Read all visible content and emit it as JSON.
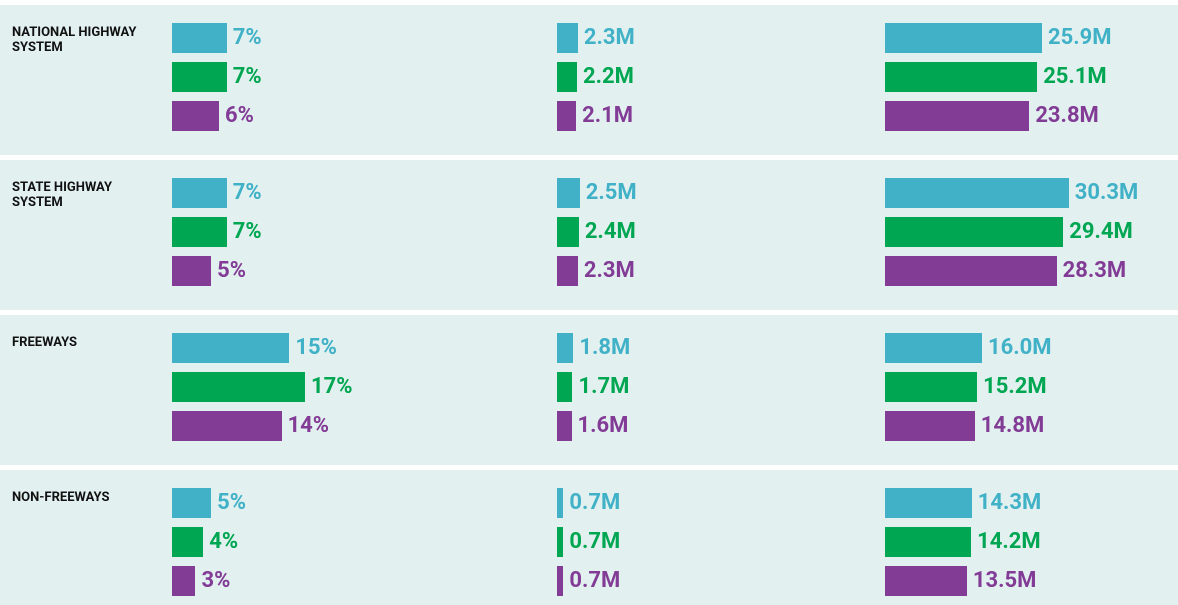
{
  "chart_data": {
    "type": "bar",
    "orientation": "horizontal",
    "categories": [
      "NATIONAL HIGHWAY SYSTEM",
      "STATE HIGHWAY SYSTEM",
      "FREEWAYS",
      "NON-FREEWAYS"
    ],
    "panels": [
      {
        "xlim": [
          0,
          46
        ],
        "series": [
          {
            "color": "#40b1c7",
            "values": [
              7,
              7,
              15,
              5
            ],
            "value_labels": [
              "7%",
              "7%",
              "15%",
              "5%"
            ]
          },
          {
            "color": "#00a651",
            "values": [
              7,
              7,
              17,
              4
            ],
            "value_labels": [
              "7%",
              "7%",
              "17%",
              "4%"
            ]
          },
          {
            "color": "#833c96",
            "values": [
              6,
              5,
              14,
              3
            ],
            "value_labels": [
              "6%",
              "5%",
              "14%",
              "3%"
            ]
          }
        ]
      },
      {
        "xlim": [
          0,
          33
        ],
        "series": [
          {
            "color": "#40b1c7",
            "values": [
              2.3,
              2.5,
              1.8,
              0.7
            ],
            "value_labels": [
              "2.3M",
              "2.5M",
              "1.8M",
              "0.7M"
            ]
          },
          {
            "color": "#00a651",
            "values": [
              2.2,
              2.4,
              1.7,
              0.7
            ],
            "value_labels": [
              "2.2M",
              "2.4M",
              "1.7M",
              "0.7M"
            ]
          },
          {
            "color": "#833c96",
            "values": [
              2.1,
              2.3,
              1.6,
              0.7
            ],
            "value_labels": [
              "2.1M",
              "2.3M",
              "1.6M",
              "0.7M"
            ]
          }
        ]
      },
      {
        "xlim": [
          0,
          47
        ],
        "series": [
          {
            "color": "#40b1c7",
            "values": [
              25.9,
              30.3,
              16.0,
              14.3
            ],
            "value_labels": [
              "25.9M",
              "30.3M",
              "16.0M",
              "14.3M"
            ]
          },
          {
            "color": "#00a651",
            "values": [
              25.1,
              29.4,
              15.2,
              14.2
            ],
            "value_labels": [
              "25.1M",
              "29.4M",
              "15.2M",
              "14.2M"
            ]
          },
          {
            "color": "#833c96",
            "values": [
              23.8,
              28.3,
              14.8,
              13.5
            ],
            "value_labels": [
              "23.8M",
              "28.3M",
              "14.8M",
              "13.5M"
            ]
          }
        ]
      }
    ]
  }
}
